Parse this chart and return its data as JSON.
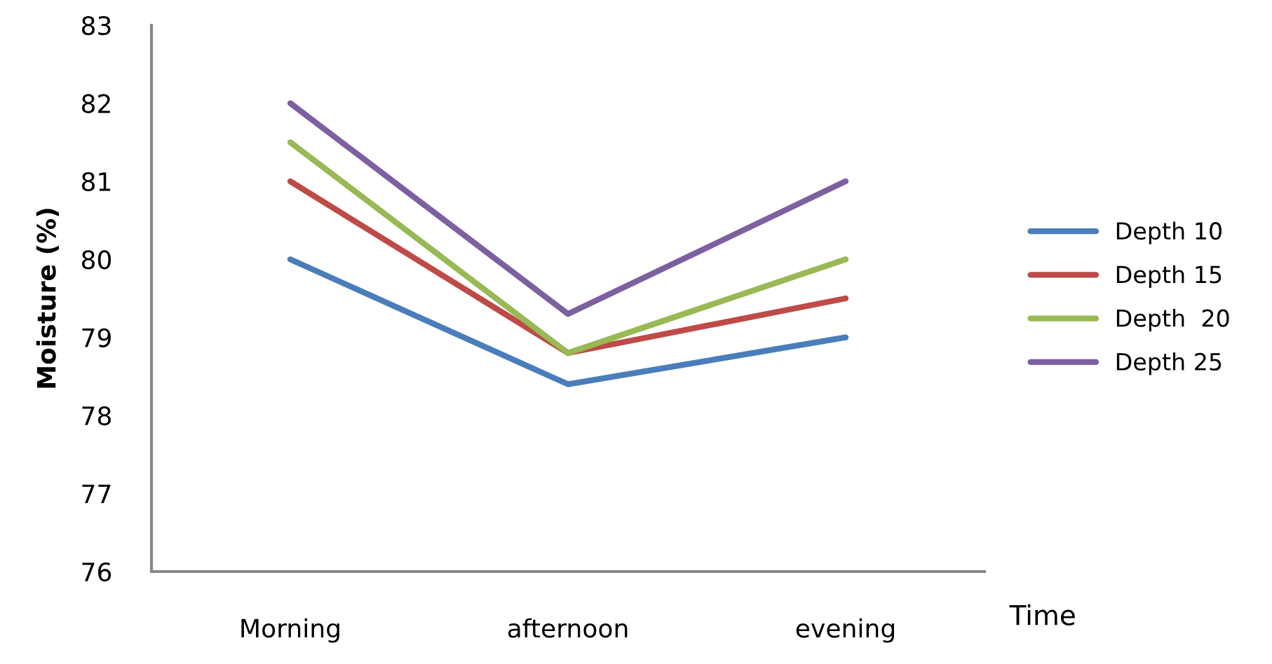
{
  "chart_data": {
    "type": "line",
    "xlabel": "Time",
    "ylabel": "Moisture (%)",
    "categories": [
      "Morning",
      "afternoon",
      "evening"
    ],
    "series": [
      {
        "name": "Depth 10",
        "color": "#4a7ebb",
        "values": [
          80,
          78.4,
          79
        ]
      },
      {
        "name": "Depth 15",
        "color": "#be4b48",
        "values": [
          81,
          78.8,
          79.5
        ]
      },
      {
        "name": "Depth  20",
        "color": "#98b954",
        "values": [
          81.5,
          78.8,
          80
        ]
      },
      {
        "name": "Depth 25",
        "color": "#7d60a0",
        "values": [
          82,
          79.3,
          81
        ]
      }
    ],
    "ylim": [
      76,
      83
    ],
    "yticks": [
      76,
      77,
      78,
      79,
      80,
      81,
      82,
      83
    ],
    "grid": false,
    "legend": "right",
    "marker": "none",
    "line_style": "solid"
  }
}
